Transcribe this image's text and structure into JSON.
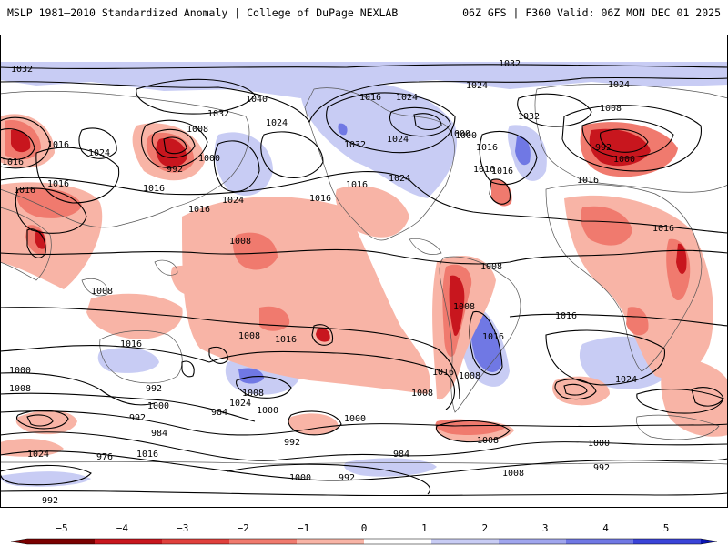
{
  "header": {
    "left": "MSLP 1981–2010 Standardized Anomaly | College of DuPage NEXLAB",
    "right": "06Z GFS | F360 Valid: 06Z MON DEC 01 2025"
  },
  "colors": {
    "neg5": "#7a0000",
    "neg4": "#c8161e",
    "neg3": "#e0403c",
    "neg2": "#f07a6e",
    "neg1": "#f8b4a6",
    "zero": "#ffffff",
    "pos1": "#c8ccf4",
    "pos2": "#a0a6ee",
    "pos3": "#7078e4",
    "pos4": "#3a44d8",
    "pos5": "#0a14b4",
    "land": "#555555",
    "contour": "#000000"
  },
  "isobar_labels": [
    {
      "id": "l1",
      "text": "1032"
    },
    {
      "id": "l2",
      "text": "1032"
    },
    {
      "id": "l3",
      "text": "1024"
    },
    {
      "id": "l4",
      "text": "1024"
    },
    {
      "id": "l5",
      "text": "1040"
    },
    {
      "id": "l6",
      "text": "1032"
    },
    {
      "id": "l7",
      "text": "1016"
    },
    {
      "id": "l8",
      "text": "1024"
    },
    {
      "id": "l9",
      "text": "1024"
    },
    {
      "id": "l10",
      "text": "1008"
    },
    {
      "id": "l11",
      "text": "1032"
    },
    {
      "id": "l12",
      "text": "1016"
    },
    {
      "id": "l13",
      "text": "1024"
    },
    {
      "id": "l14",
      "text": "1016"
    },
    {
      "id": "l15",
      "text": "1000"
    },
    {
      "id": "l16",
      "text": "992"
    },
    {
      "id": "l17",
      "text": "1000"
    },
    {
      "id": "l18",
      "text": "1008"
    },
    {
      "id": "l19",
      "text": "1016"
    },
    {
      "id": "l20",
      "text": "1016"
    },
    {
      "id": "l21",
      "text": "1032"
    },
    {
      "id": "l22",
      "text": "1024"
    },
    {
      "id": "l23",
      "text": "1016"
    },
    {
      "id": "l24",
      "text": "1000"
    },
    {
      "id": "l25",
      "text": "1016"
    },
    {
      "id": "l26",
      "text": "1024"
    },
    {
      "id": "l27",
      "text": "1016"
    },
    {
      "id": "l28",
      "text": "1024"
    },
    {
      "id": "l29",
      "text": "1016"
    },
    {
      "id": "l30",
      "text": "1016"
    },
    {
      "id": "l31",
      "text": "1008"
    },
    {
      "id": "l32",
      "text": "992"
    },
    {
      "id": "l33",
      "text": "1000"
    },
    {
      "id": "l34",
      "text": "1016"
    },
    {
      "id": "l35",
      "text": "1016"
    },
    {
      "id": "l36",
      "text": "1008"
    },
    {
      "id": "l37",
      "text": "1008"
    },
    {
      "id": "l38",
      "text": "1008"
    },
    {
      "id": "l39",
      "text": "1016"
    },
    {
      "id": "l40",
      "text": "1008"
    },
    {
      "id": "l41",
      "text": "1016"
    },
    {
      "id": "l42",
      "text": "1016"
    },
    {
      "id": "l43",
      "text": "1016"
    },
    {
      "id": "l44",
      "text": "1016"
    },
    {
      "id": "l45",
      "text": "1016"
    },
    {
      "id": "l46",
      "text": "1008"
    },
    {
      "id": "l47",
      "text": "1024"
    },
    {
      "id": "l48",
      "text": "1016"
    },
    {
      "id": "l49",
      "text": "1000"
    },
    {
      "id": "l50",
      "text": "1008"
    },
    {
      "id": "l51",
      "text": "992"
    },
    {
      "id": "l52",
      "text": "1000"
    },
    {
      "id": "l53",
      "text": "984"
    },
    {
      "id": "l54",
      "text": "992"
    },
    {
      "id": "l55",
      "text": "1000"
    },
    {
      "id": "l56",
      "text": "984"
    },
    {
      "id": "l57",
      "text": "1000"
    },
    {
      "id": "l58",
      "text": "1008"
    },
    {
      "id": "l59",
      "text": "1016"
    },
    {
      "id": "l60",
      "text": "976"
    },
    {
      "id": "l61",
      "text": "992"
    },
    {
      "id": "l62",
      "text": "984"
    },
    {
      "id": "l63",
      "text": "1008"
    },
    {
      "id": "l64",
      "text": "992"
    },
    {
      "id": "l65",
      "text": "1000"
    },
    {
      "id": "l66",
      "text": "992"
    },
    {
      "id": "l67",
      "text": "1000"
    },
    {
      "id": "l68",
      "text": "1008"
    },
    {
      "id": "l69",
      "text": "992"
    },
    {
      "id": "l70",
      "text": "1024"
    },
    {
      "id": "l71",
      "text": "1008"
    },
    {
      "id": "l72",
      "text": "1024"
    }
  ],
  "colorbar": {
    "ticks": [
      {
        "value": -5,
        "label": "−5"
      },
      {
        "value": -4,
        "label": "−4"
      },
      {
        "value": -3,
        "label": "−3"
      },
      {
        "value": -2,
        "label": "−2"
      },
      {
        "value": -1,
        "label": "−1"
      },
      {
        "value": 0,
        "label": "0"
      },
      {
        "value": 1,
        "label": "1"
      },
      {
        "value": 2,
        "label": "2"
      },
      {
        "value": 3,
        "label": "3"
      },
      {
        "value": 4,
        "label": "4"
      },
      {
        "value": 5,
        "label": "5"
      }
    ],
    "range": [
      -5,
      5
    ]
  }
}
